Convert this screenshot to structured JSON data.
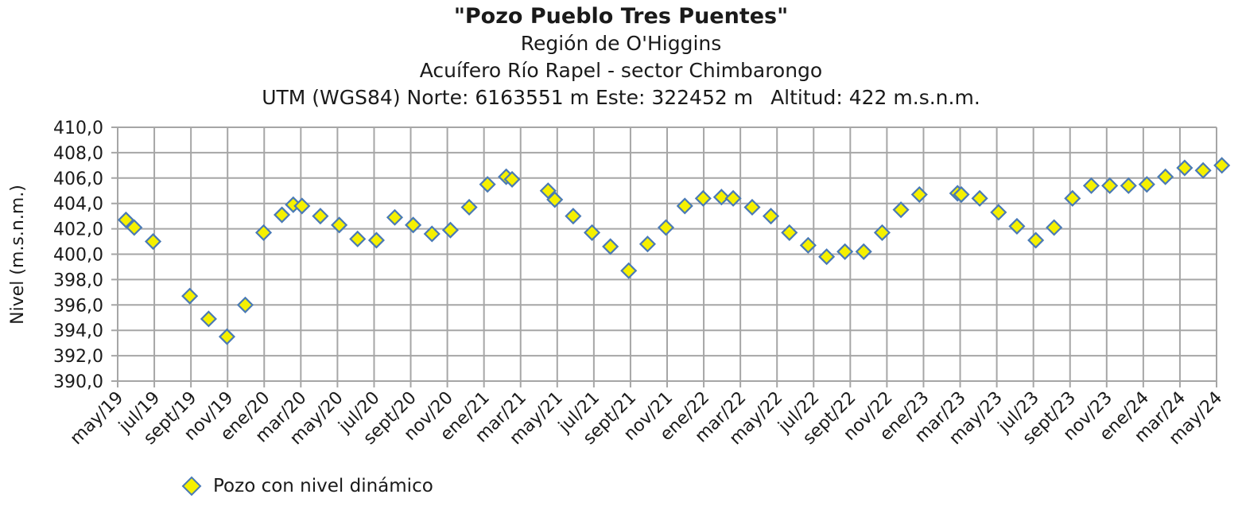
{
  "chart_data": {
    "type": "scatter",
    "title": "\"Pozo Pueblo Tres Puentes\"",
    "subtitle_lines": [
      "Región de O'Higgins",
      "Acuífero Río Rapel - sector Chimbarongo"
    ],
    "coords_text": "UTM (WGS84) Norte: 6163551 m Este: 322452 m",
    "altitude_text": "Altitud: 422 m.s.n.m.",
    "ylabel": "Nivel (m.s.n.m.)",
    "xlabel": "",
    "ylim": [
      390,
      410
    ],
    "y_ticks": [
      "390,0",
      "392,0",
      "394,0",
      "396,0",
      "398,0",
      "400,0",
      "402,0",
      "404,0",
      "406,0",
      "408,0",
      "410,0"
    ],
    "x_ticks": [
      "may/19",
      "jul/19",
      "sept/19",
      "nov/19",
      "ene/20",
      "mar/20",
      "may/20",
      "jul/20",
      "sept/20",
      "nov/20",
      "ene/21",
      "mar/21",
      "may/21",
      "jul/21",
      "sept/21",
      "nov/21",
      "ene/22",
      "mar/22",
      "may/22",
      "jul/22",
      "sept/22",
      "nov/22",
      "ene/23",
      "mar/23",
      "may/23",
      "jul/23",
      "sept/23",
      "nov/23",
      "ene/24",
      "mar/24",
      "may/24"
    ],
    "grid": true,
    "legend_position": "bottom-left",
    "marker_color": "#f5f000",
    "marker_edge_color": "#4a7ab5",
    "grid_color": "#a6a6a6",
    "series": [
      {
        "name": "Pozo con nivel dinámico",
        "points": [
          {
            "x": "2019-05-15",
            "y": 402.7
          },
          {
            "x": "2019-05-29",
            "y": 402.1
          },
          {
            "x": "2019-06-29",
            "y": 401.0
          },
          {
            "x": "2019-08-30",
            "y": 396.7
          },
          {
            "x": "2019-09-30",
            "y": 394.9
          },
          {
            "x": "2019-10-31",
            "y": 393.5
          },
          {
            "x": "2019-11-30",
            "y": 396.0
          },
          {
            "x": "2019-12-31",
            "y": 401.7
          },
          {
            "x": "2020-01-31",
            "y": 403.1
          },
          {
            "x": "2020-02-18",
            "y": 403.9
          },
          {
            "x": "2020-03-03",
            "y": 403.8
          },
          {
            "x": "2020-04-03",
            "y": 403.0
          },
          {
            "x": "2020-05-04",
            "y": 402.3
          },
          {
            "x": "2020-06-04",
            "y": 401.2
          },
          {
            "x": "2020-07-05",
            "y": 401.1
          },
          {
            "x": "2020-08-05",
            "y": 402.9
          },
          {
            "x": "2020-09-05",
            "y": 402.3
          },
          {
            "x": "2020-10-06",
            "y": 401.6
          },
          {
            "x": "2020-11-06",
            "y": 401.9
          },
          {
            "x": "2020-12-07",
            "y": 403.7
          },
          {
            "x": "2021-01-07",
            "y": 405.5
          },
          {
            "x": "2021-02-07",
            "y": 406.1
          },
          {
            "x": "2021-02-16",
            "y": 405.9
          },
          {
            "x": "2021-04-16",
            "y": 405.0
          },
          {
            "x": "2021-04-27",
            "y": 404.3
          },
          {
            "x": "2021-05-28",
            "y": 403.0
          },
          {
            "x": "2021-06-28",
            "y": 401.7
          },
          {
            "x": "2021-07-29",
            "y": 400.6
          },
          {
            "x": "2021-08-29",
            "y": 398.7
          },
          {
            "x": "2021-09-29",
            "y": 400.8
          },
          {
            "x": "2021-10-30",
            "y": 402.1
          },
          {
            "x": "2021-11-30",
            "y": 403.8
          },
          {
            "x": "2021-12-31",
            "y": 404.4
          },
          {
            "x": "2022-01-31",
            "y": 404.5
          },
          {
            "x": "2022-02-18",
            "y": 404.4
          },
          {
            "x": "2022-03-21",
            "y": 403.7
          },
          {
            "x": "2022-04-21",
            "y": 403.0
          },
          {
            "x": "2022-05-22",
            "y": 401.7
          },
          {
            "x": "2022-06-22",
            "y": 400.7
          },
          {
            "x": "2022-07-23",
            "y": 399.8
          },
          {
            "x": "2022-08-23",
            "y": 400.2
          },
          {
            "x": "2022-09-23",
            "y": 400.2
          },
          {
            "x": "2022-10-24",
            "y": 401.7
          },
          {
            "x": "2022-11-24",
            "y": 403.5
          },
          {
            "x": "2022-12-25",
            "y": 404.7
          },
          {
            "x": "2023-02-25",
            "y": 404.8
          },
          {
            "x": "2023-03-03",
            "y": 404.7
          },
          {
            "x": "2023-04-03",
            "y": 404.4
          },
          {
            "x": "2023-05-04",
            "y": 403.3
          },
          {
            "x": "2023-06-04",
            "y": 402.2
          },
          {
            "x": "2023-07-05",
            "y": 401.1
          },
          {
            "x": "2023-08-05",
            "y": 402.1
          },
          {
            "x": "2023-09-05",
            "y": 404.4
          },
          {
            "x": "2023-10-06",
            "y": 405.4
          },
          {
            "x": "2023-11-06",
            "y": 405.4
          },
          {
            "x": "2023-12-07",
            "y": 405.4
          },
          {
            "x": "2024-01-07",
            "y": 405.5
          },
          {
            "x": "2024-02-07",
            "y": 406.1
          },
          {
            "x": "2024-03-09",
            "y": 406.8
          },
          {
            "x": "2024-04-09",
            "y": 406.6
          },
          {
            "x": "2024-05-10",
            "y": 407.0
          }
        ]
      }
    ]
  }
}
